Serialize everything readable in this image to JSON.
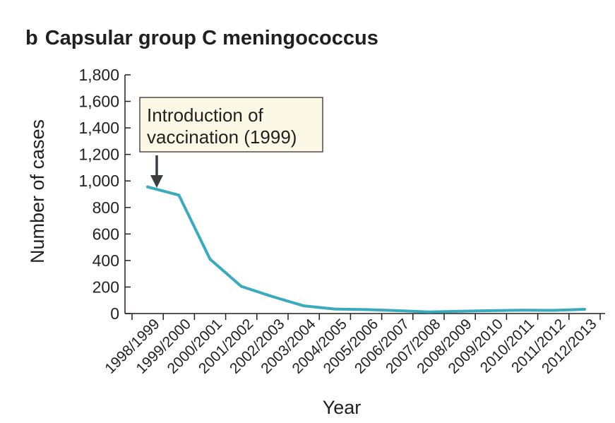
{
  "panel_label": "b",
  "chart_data": {
    "type": "line",
    "title": "Capsular group C meningococcus",
    "xlabel": "Year",
    "ylabel": "Number of cases",
    "ylim": [
      0,
      1800
    ],
    "yticks": [
      0,
      200,
      400,
      600,
      800,
      1000,
      1200,
      1400,
      1600,
      1800
    ],
    "ytick_labels": [
      "0",
      "200",
      "400",
      "600",
      "800",
      "1,000",
      "1,200",
      "1,400",
      "1,600",
      "1,800"
    ],
    "categories": [
      "1998/1999",
      "1999/2000",
      "2000/2001",
      "2001/2002",
      "2002/2003",
      "2003/2004",
      "2004/2005",
      "2005/2006",
      "2006/2007",
      "2007/2008",
      "2008/2009",
      "2009/2010",
      "2010/2011",
      "2011/2012",
      "2012/2013"
    ],
    "series": [
      {
        "name": "Number of cases",
        "color": "#3aabbf",
        "values": [
          955,
          893,
          410,
          205,
          128,
          58,
          34,
          30,
          22,
          12,
          17,
          22,
          25,
          24,
          32
        ]
      }
    ],
    "grid": false,
    "annotation": {
      "text_line1": "Introduction of",
      "text_line2": "vaccination (1999)",
      "points_to_category": "1998/1999",
      "box_fill": "#fbf8e5"
    },
    "colors": {
      "line": "#3aabbf",
      "axis": "#231f20",
      "annotation_box": "#fbf8e5"
    }
  }
}
